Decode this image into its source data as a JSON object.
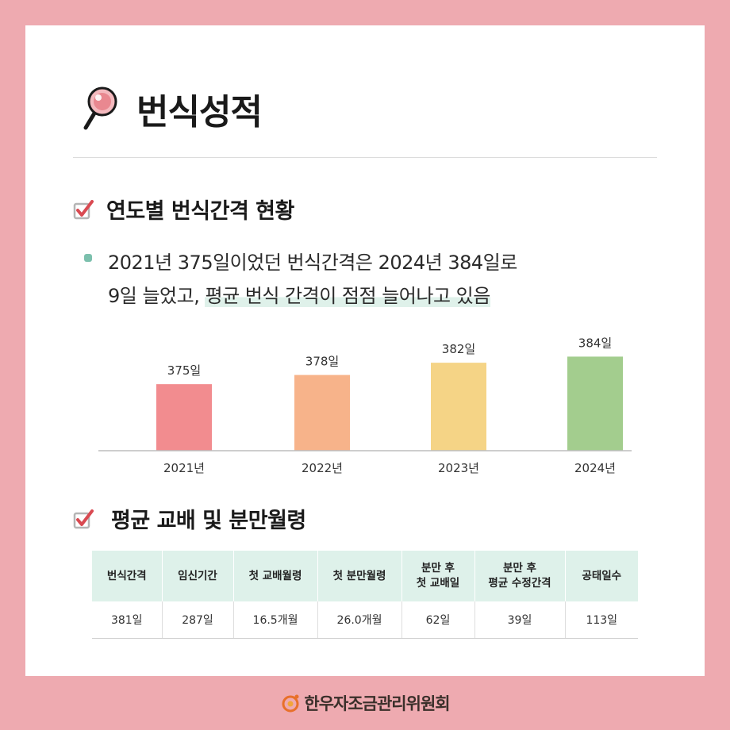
{
  "page": {
    "title": "번식성적"
  },
  "section1": {
    "title": "연도별 번식간격 현황",
    "bullet_line1": "2021년 375일이었던 번식간격은 2024년 384일로",
    "bullet_line2_plain": "9일 늘었고, ",
    "bullet_line2_highlight": "평균 번식 간격이 점점 늘어나고 있음"
  },
  "chart_data": {
    "type": "bar",
    "categories": [
      "2021년",
      "2022년",
      "2023년",
      "2024년"
    ],
    "values": [
      375,
      378,
      382,
      384
    ],
    "data_labels": [
      "375일",
      "378일",
      "382일",
      "384일"
    ],
    "colors": [
      "#f28c8f",
      "#f7b38a",
      "#f5d486",
      "#a3cd8e"
    ],
    "title": "",
    "xlabel": "",
    "ylabel": "",
    "grid": false,
    "legend": "none"
  },
  "section2": {
    "title": "평균 교배 및 분만월령",
    "table": {
      "headers": [
        "번식간격",
        "임신기간",
        "첫 교배월령",
        "첫 분만월령",
        "분만 후\n첫 교배일",
        "분만 후\n평균 수정간격",
        "공태일수"
      ],
      "row": [
        "381일",
        "287일",
        "16.5개월",
        "26.0개월",
        "62일",
        "39일",
        "113일"
      ]
    }
  },
  "footer": {
    "org_name": "한우자조금관리위원회"
  },
  "icons": {
    "title": "magnifier-icon",
    "check": "checkbox-checked-icon",
    "logo": "hanwoo-logo-icon"
  },
  "colors": {
    "background": "#eeaab0",
    "accent_mint": "#7cc0ad",
    "table_header": "#def1ea",
    "check_red": "#d94a52"
  }
}
